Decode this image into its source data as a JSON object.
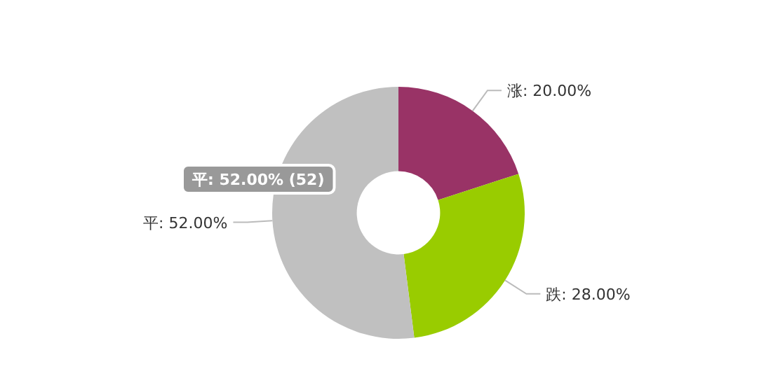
{
  "chart_data": {
    "type": "donut",
    "categories": [
      "涨",
      "跌",
      "平"
    ],
    "values": [
      20,
      28,
      52
    ],
    "colors": [
      "#993366",
      "#99cc00",
      "#c0c0c0"
    ],
    "value_labels": [
      "20.00%",
      "28.00%",
      "52.00%"
    ],
    "annotations": [
      "平: 52.00% (52)"
    ]
  }
}
